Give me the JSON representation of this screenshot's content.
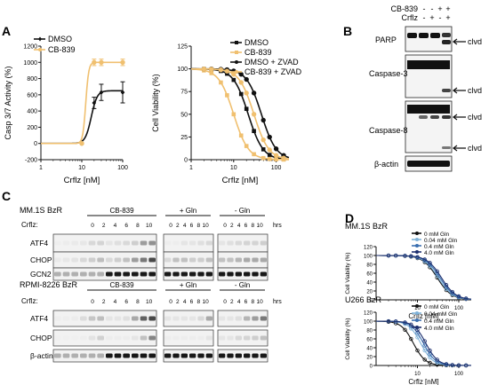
{
  "panels": {
    "A": "A",
    "B": "B",
    "C": "C",
    "D": "D"
  },
  "chart_data": [
    {
      "id": "A1",
      "type": "line",
      "xlabel": "Crflz [nM]",
      "ylabel": "Casp 3/7 Activity (%)",
      "x_scale": "log",
      "xlim": [
        1,
        100
      ],
      "ylim": [
        -200,
        1200
      ],
      "x_ticks": [
        {
          "v": 1,
          "label": "1"
        },
        {
          "v": 10,
          "label": "10"
        },
        {
          "v": 100,
          "label": "100"
        }
      ],
      "y_ticks": [
        {
          "v": -200,
          "label": "-200"
        },
        {
          "v": 0,
          "label": "0"
        },
        {
          "v": 200,
          "label": "200"
        },
        {
          "v": 400,
          "label": "400"
        },
        {
          "v": 600,
          "label": "600"
        },
        {
          "v": 800,
          "label": "800"
        },
        {
          "v": 1000,
          "label": "1000"
        },
        {
          "v": 1200,
          "label": "1200"
        }
      ],
      "legend_position": "top-left",
      "series": [
        {
          "name": "DMSO",
          "color": "#111111",
          "marker": "diamond",
          "points": [
            {
              "x": 10,
              "y": 0
            },
            {
              "x": 20,
              "y": 500
            },
            {
              "x": 30,
              "y": 630
            },
            {
              "x": 100,
              "y": 630
            }
          ],
          "errors": [
            0,
            70,
            100,
            130
          ],
          "curve": {
            "bottom": 0,
            "top": 650,
            "ec50": 17,
            "hill": 6
          }
        },
        {
          "name": "CB-839",
          "color": "#f0c070",
          "marker": "circle",
          "points": [
            {
              "x": 10,
              "y": 0
            },
            {
              "x": 20,
              "y": 1000
            },
            {
              "x": 30,
              "y": 1000
            },
            {
              "x": 100,
              "y": 1000
            }
          ],
          "errors": [
            0,
            40,
            40,
            40
          ],
          "curve": {
            "bottom": 0,
            "top": 1000,
            "ec50": 12.5,
            "hill": 12
          }
        }
      ]
    },
    {
      "id": "A2",
      "type": "line",
      "xlabel": "Crflz [nM]",
      "ylabel": "Cell Viability (%)",
      "x_scale": "log",
      "xlim": [
        1,
        200
      ],
      "ylim": [
        0,
        125
      ],
      "x_ticks": [
        {
          "v": 1,
          "label": "1"
        },
        {
          "v": 10,
          "label": "10"
        },
        {
          "v": 100,
          "label": "100"
        }
      ],
      "y_ticks": [
        {
          "v": 0,
          "label": "0"
        },
        {
          "v": 25,
          "label": "25"
        },
        {
          "v": 50,
          "label": "50"
        },
        {
          "v": 75,
          "label": "75"
        },
        {
          "v": 100,
          "label": "100"
        },
        {
          "v": 125,
          "label": "125"
        }
      ],
      "legend_position": "top-right",
      "series": [
        {
          "name": "DMSO",
          "color": "#111111",
          "marker": "square",
          "curve": {
            "bottom": 0,
            "top": 100,
            "ec50": 22,
            "hill": 2.5
          }
        },
        {
          "name": "CB-839",
          "color": "#f0c070",
          "marker": "square",
          "curve": {
            "bottom": 0,
            "top": 100,
            "ec50": 10,
            "hill": 2.5
          }
        },
        {
          "name": "DMSO + ZVAD",
          "color": "#111111",
          "marker": "circle",
          "curve": {
            "bottom": 0,
            "top": 100,
            "ec50": 45,
            "hill": 2.5
          }
        },
        {
          "name": "CB-839 + ZVAD",
          "color": "#f0c070",
          "marker": "circle",
          "curve": {
            "bottom": 0,
            "top": 100,
            "ec50": 30,
            "hill": 2.5
          }
        }
      ],
      "x_points": [
        2,
        3,
        5,
        7,
        10,
        15,
        20,
        30,
        50,
        70,
        100,
        150
      ]
    },
    {
      "id": "D1",
      "type": "line",
      "title": "MM.1S BzR",
      "xlabel": "Crflz [nM]",
      "ylabel": "Cell Viability (%)",
      "x_scale": "log",
      "xlim": [
        1,
        200
      ],
      "ylim": [
        0,
        120
      ],
      "x_ticks": [
        {
          "v": 10,
          "label": "10"
        },
        {
          "v": 100,
          "label": "100"
        }
      ],
      "y_ticks": [
        {
          "v": 0,
          "label": "0"
        },
        {
          "v": 20,
          "label": "20"
        },
        {
          "v": 40,
          "label": "40"
        },
        {
          "v": 60,
          "label": "60"
        },
        {
          "v": 80,
          "label": "80"
        },
        {
          "v": 100,
          "label": "100"
        },
        {
          "v": 120,
          "label": "120"
        }
      ],
      "legend_position": "top-right",
      "series": [
        {
          "name": "0 mM Gln",
          "color": "#111111",
          "curve": {
            "bottom": 0,
            "top": 100,
            "ec50": 30,
            "hill": 2.5
          }
        },
        {
          "name": "0.04 mM Gln",
          "color": "#7fb2d8",
          "curve": {
            "bottom": 0,
            "top": 100,
            "ec50": 32,
            "hill": 2.5
          }
        },
        {
          "name": "0.4 mM Gln",
          "color": "#3a6fb0",
          "curve": {
            "bottom": 0,
            "top": 100,
            "ec50": 35,
            "hill": 2.5
          }
        },
        {
          "name": "4.0 mM Gln",
          "color": "#1c2f6e",
          "curve": {
            "bottom": 0,
            "top": 100,
            "ec50": 38,
            "hill": 2.5
          }
        }
      ],
      "x_points": [
        2,
        3,
        5,
        7,
        10,
        15,
        20,
        30,
        50,
        70,
        100,
        150
      ]
    },
    {
      "id": "D2",
      "type": "line",
      "title": "U266 BzR",
      "xlabel": "Crflz [nM]",
      "ylabel": "Cell Viability (%)",
      "x_scale": "log",
      "xlim": [
        1,
        200
      ],
      "ylim": [
        0,
        120
      ],
      "x_ticks": [
        {
          "v": 10,
          "label": "10"
        },
        {
          "v": 100,
          "label": "100"
        }
      ],
      "y_ticks": [
        {
          "v": 0,
          "label": "0"
        },
        {
          "v": 20,
          "label": "20"
        },
        {
          "v": 40,
          "label": "40"
        },
        {
          "v": 60,
          "label": "60"
        },
        {
          "v": 80,
          "label": "80"
        },
        {
          "v": 100,
          "label": "100"
        },
        {
          "v": 120,
          "label": "120"
        }
      ],
      "legend_position": "top-right",
      "series": [
        {
          "name": "0 mM Gln",
          "color": "#111111",
          "curve": {
            "bottom": 0,
            "top": 100,
            "ec50": 8,
            "hill": 3
          }
        },
        {
          "name": "0.04 mM Gln",
          "color": "#7fb2d8",
          "curve": {
            "bottom": 0,
            "top": 100,
            "ec50": 12,
            "hill": 3
          }
        },
        {
          "name": "0.4 mM Gln",
          "color": "#3a6fb0",
          "curve": {
            "bottom": 0,
            "top": 100,
            "ec50": 14,
            "hill": 3
          }
        },
        {
          "name": "4.0 mM Gln",
          "color": "#1c2f6e",
          "curve": {
            "bottom": 0,
            "top": 100,
            "ec50": 16,
            "hill": 3
          }
        }
      ],
      "x_points": [
        2,
        3,
        5,
        7,
        10,
        15,
        20,
        30,
        50,
        70,
        100,
        150
      ]
    }
  ],
  "panel_b": {
    "treatments": [
      {
        "label": "CB-839",
        "signs": [
          "-",
          "-",
          "+",
          "+"
        ]
      },
      {
        "label": "Crflz",
        "signs": [
          "-",
          "+",
          "-",
          "+"
        ]
      }
    ],
    "blots": [
      {
        "label": "PARP",
        "cleaved_labels": [
          "clvd"
        ]
      },
      {
        "label": "Caspase-3",
        "cleaved_labels": [
          "clvd"
        ]
      },
      {
        "label": "Caspase-8",
        "cleaved_labels": [
          "clvd",
          "clvd"
        ]
      },
      {
        "label": "β-actin",
        "cleaved_labels": []
      }
    ]
  },
  "panel_c": {
    "blocks": [
      {
        "cell_line": "MM.1S BzR",
        "treatment_label": "Crflz:",
        "time_unit": "hrs",
        "groups": [
          "CB-839",
          "+ Gln",
          "- Gln"
        ],
        "timepoints": [
          "0",
          "2",
          "4",
          "6",
          "8",
          "10"
        ],
        "rows": [
          "ATF4",
          "CHOP",
          "GCN2"
        ]
      },
      {
        "cell_line": "RPMI-8226 BzR",
        "treatment_label": "Crflz:",
        "time_unit": "hrs",
        "groups": [
          "CB-839",
          "+ Gln",
          "- Gln"
        ],
        "timepoints": [
          "0",
          "2",
          "4",
          "6",
          "8",
          "10"
        ],
        "rows": [
          "ATF4",
          "CHOP",
          "β-actin"
        ]
      }
    ]
  }
}
